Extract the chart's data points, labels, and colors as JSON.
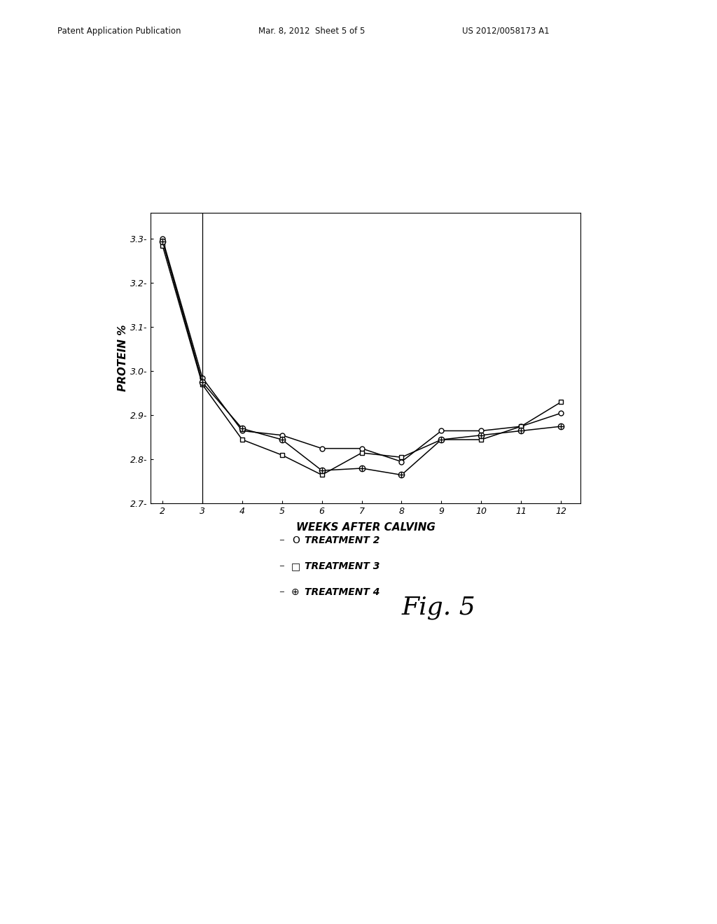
{
  "header_left": "Patent Application Publication",
  "header_mid": "Mar. 8, 2012  Sheet 5 of 5",
  "header_right": "US 2012/0058173 A1",
  "fig_label": "Fig. 5",
  "xlabel": "WEEKS AFTER CALVING",
  "ylabel": "PROTEIN %",
  "xlim": [
    1.7,
    12.5
  ],
  "ylim": [
    2.7,
    3.36
  ],
  "xticks": [
    2,
    3,
    4,
    5,
    6,
    7,
    8,
    9,
    10,
    11,
    12
  ],
  "yticks": [
    2.7,
    2.8,
    2.9,
    3.0,
    3.1,
    3.2,
    3.3
  ],
  "ytick_labels": [
    "2.7-",
    "2.8-",
    "2.9-",
    "3.0-",
    "3.1-",
    "3.2-",
    "3.3-"
  ],
  "vline_x": 3,
  "treatment2_x": [
    2,
    3,
    4,
    5,
    6,
    7,
    8,
    9,
    10,
    11,
    12
  ],
  "treatment2_y": [
    3.3,
    2.985,
    2.865,
    2.855,
    2.825,
    2.825,
    2.795,
    2.865,
    2.865,
    2.875,
    2.905
  ],
  "treatment3_x": [
    2,
    3,
    4,
    5,
    6,
    7,
    8,
    9,
    10,
    11,
    12
  ],
  "treatment3_y": [
    3.285,
    2.97,
    2.845,
    2.81,
    2.765,
    2.815,
    2.805,
    2.845,
    2.845,
    2.875,
    2.93
  ],
  "treatment4_x": [
    2,
    3,
    4,
    5,
    6,
    7,
    8,
    9,
    10,
    11,
    12
  ],
  "treatment4_y": [
    3.295,
    2.975,
    2.87,
    2.845,
    2.775,
    2.78,
    2.765,
    2.845,
    2.855,
    2.865,
    2.875
  ],
  "legend_labels": [
    "TREATMENT 2",
    "TREATMENT 3",
    "TREATMENT 4"
  ],
  "line_color": "#000000",
  "background_color": "#ffffff"
}
